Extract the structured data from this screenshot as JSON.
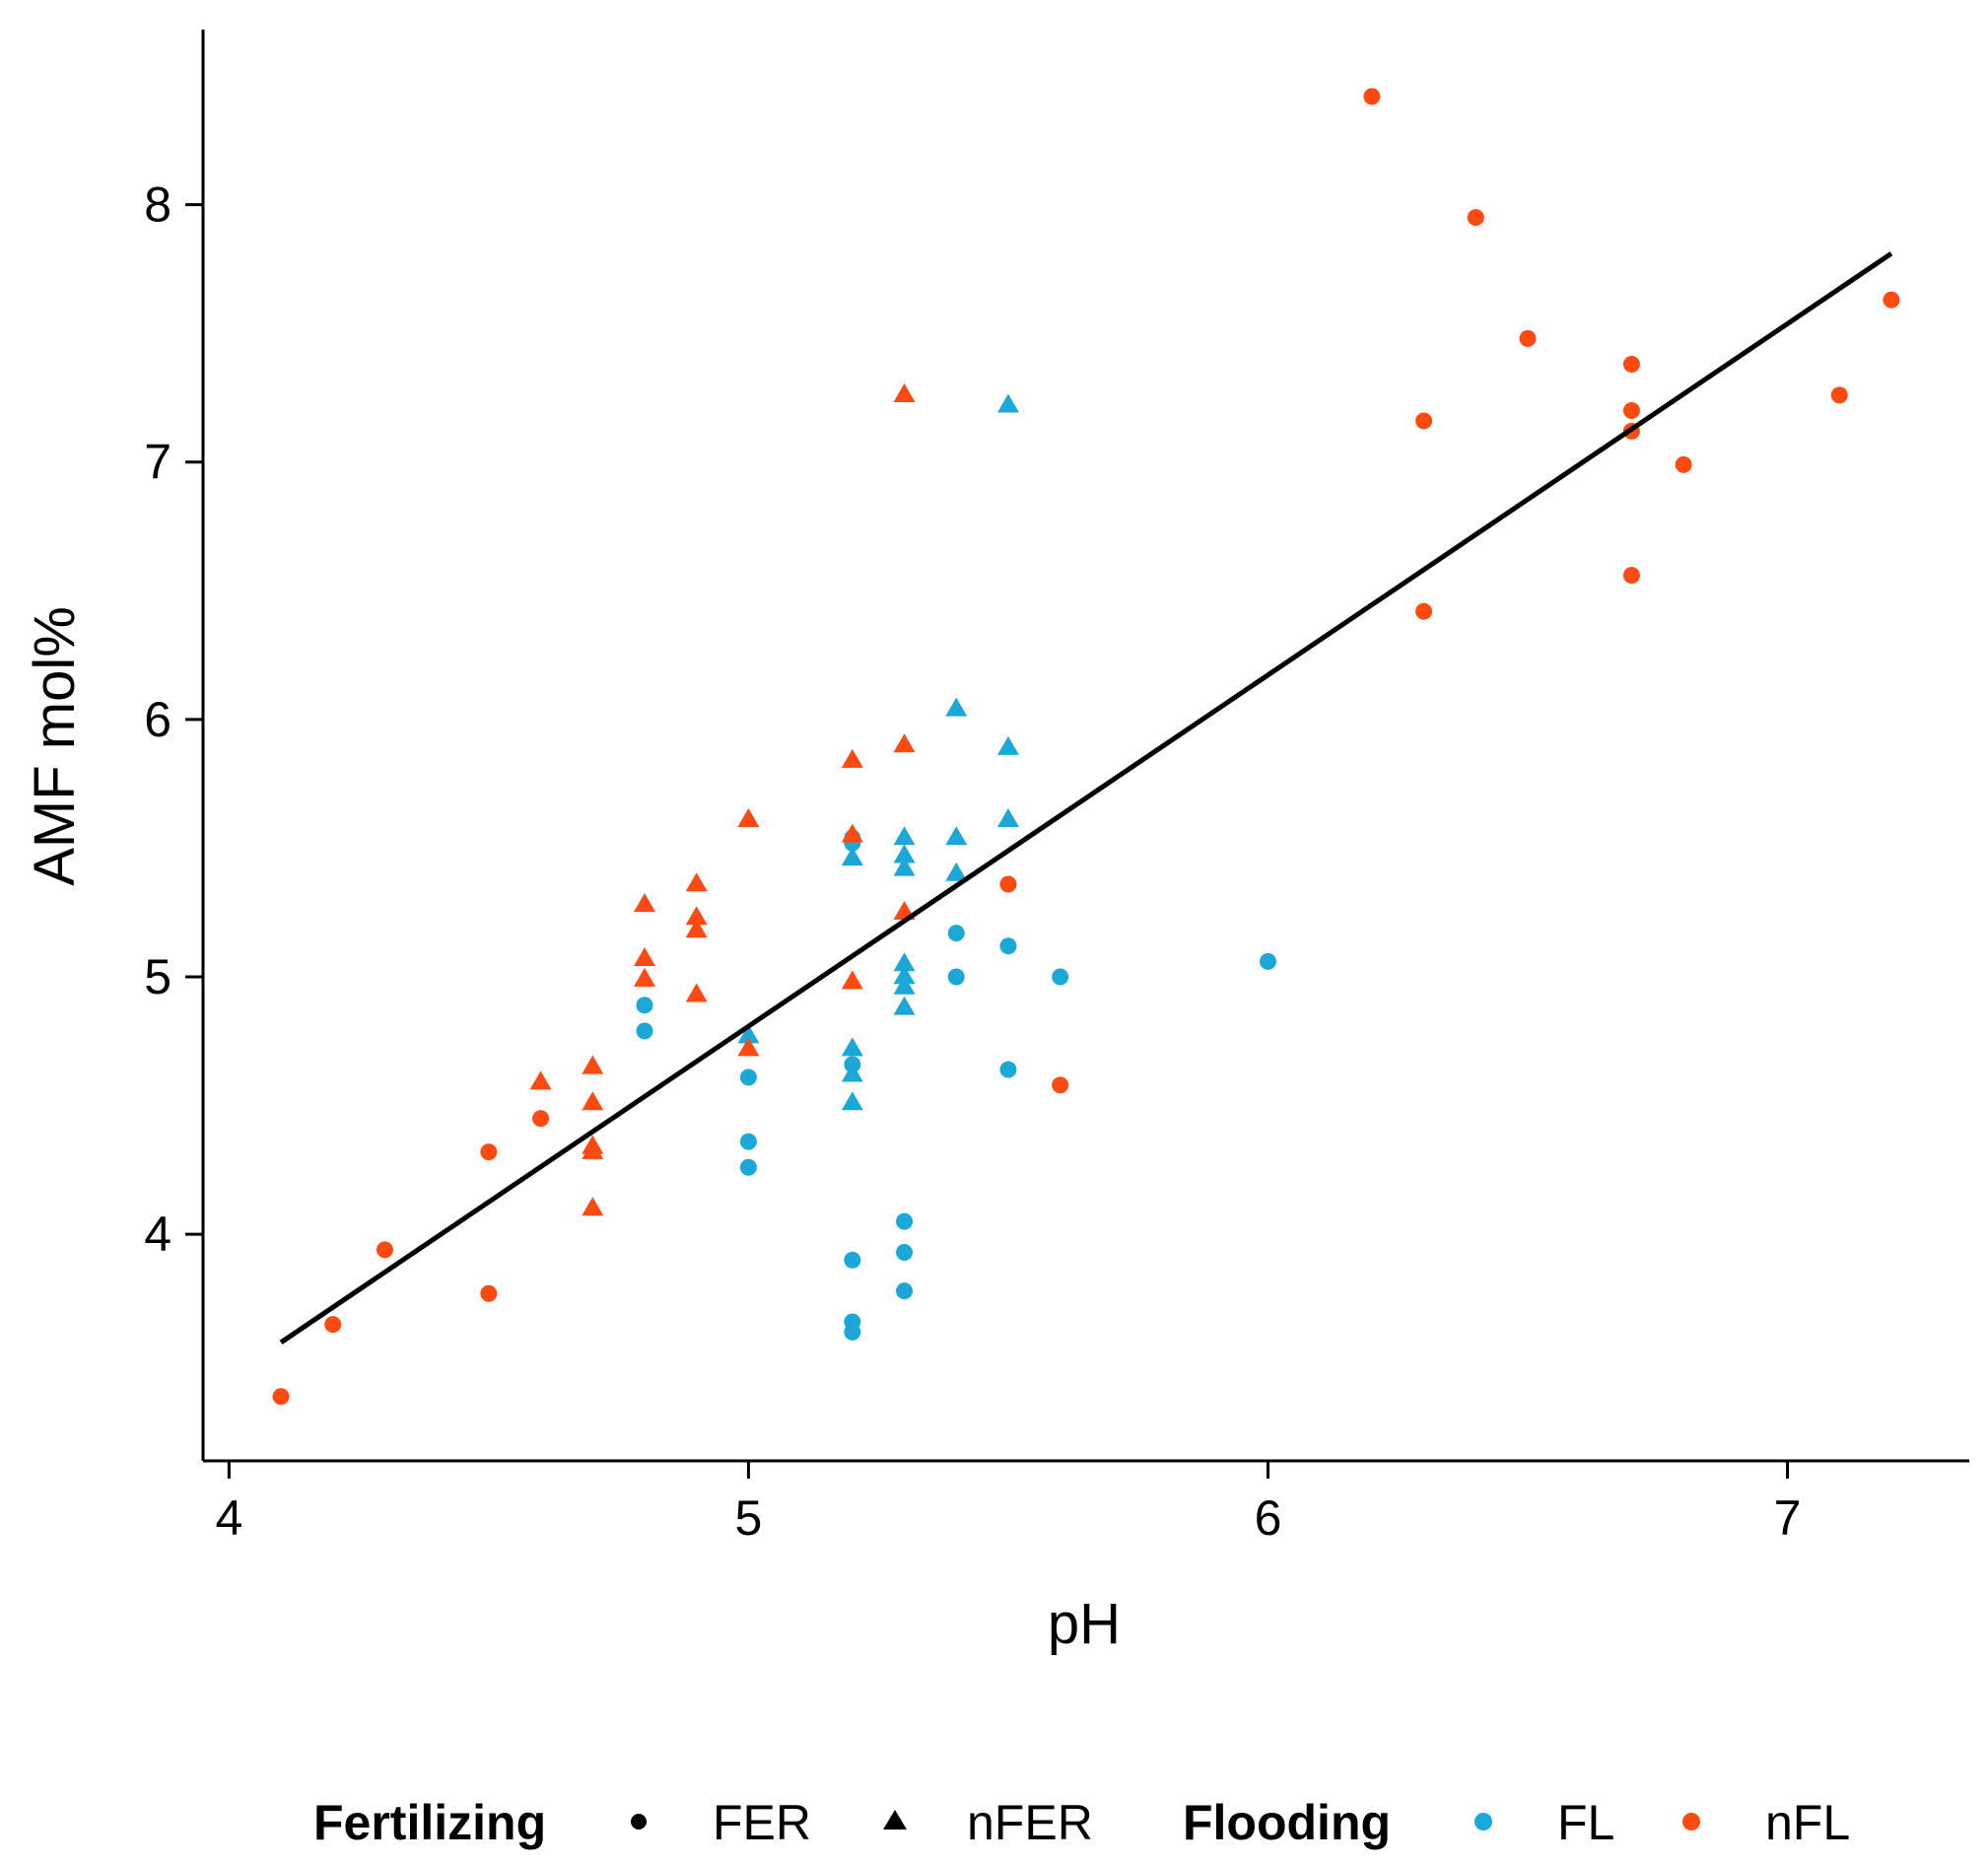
{
  "chart_data": {
    "type": "scatter",
    "title": "",
    "xlabel": "pH",
    "ylabel": "AMF mol%",
    "xlim": [
      3.95,
      7.35
    ],
    "ylim": [
      3.12,
      8.68
    ],
    "xticks": [
      4,
      5,
      6,
      7
    ],
    "yticks": [
      4,
      5,
      6,
      7,
      8
    ],
    "xtick_labels": [
      "4",
      "5",
      "6",
      "7"
    ],
    "ytick_labels": [
      "4",
      "5",
      "6",
      "7",
      "8"
    ],
    "grid": false,
    "legend_position": "bottom",
    "legend": {
      "fertilizing_title": "Fertilizing",
      "fertilizing_entries": [
        {
          "label": "FER",
          "shape": "circle"
        },
        {
          "label": "nFER",
          "shape": "triangle"
        }
      ],
      "flooding_title": "Flooding",
      "flooding_entries": [
        {
          "label": "FL",
          "color": "#1BA8D9"
        },
        {
          "label": "nFL",
          "color": "#FF4B12"
        }
      ]
    },
    "colors": {
      "FL": "#1BA8D9",
      "nFL": "#FF4B12",
      "line": "#000000",
      "axis": "#000000"
    },
    "fit_line": {
      "x": [
        4.1,
        7.2
      ],
      "y": [
        3.58,
        7.81
      ]
    },
    "series": [
      {
        "name": "FER-FL",
        "fertilizing": "FER",
        "flooding": "FL",
        "points": [
          [
            4.8,
            4.89
          ],
          [
            4.8,
            4.79
          ],
          [
            5.0,
            4.61
          ],
          [
            5.0,
            4.36
          ],
          [
            5.0,
            4.26
          ],
          [
            5.2,
            5.54
          ],
          [
            5.2,
            5.52
          ],
          [
            5.2,
            4.66
          ],
          [
            5.2,
            3.9
          ],
          [
            5.2,
            3.66
          ],
          [
            5.2,
            3.62
          ],
          [
            5.3,
            4.05
          ],
          [
            5.3,
            3.93
          ],
          [
            5.3,
            3.78
          ],
          [
            5.4,
            5.17
          ],
          [
            5.4,
            5.0
          ],
          [
            5.5,
            5.12
          ],
          [
            5.5,
            4.64
          ],
          [
            5.6,
            5.0
          ],
          [
            6.0,
            5.06
          ]
        ]
      },
      {
        "name": "nFER-FL",
        "fertilizing": "nFER",
        "flooding": "FL",
        "points": [
          [
            5.0,
            4.77
          ],
          [
            5.2,
            5.46
          ],
          [
            5.2,
            4.72
          ],
          [
            5.2,
            4.62
          ],
          [
            5.2,
            4.51
          ],
          [
            5.3,
            5.54
          ],
          [
            5.3,
            5.47
          ],
          [
            5.3,
            5.42
          ],
          [
            5.3,
            5.05
          ],
          [
            5.3,
            5.0
          ],
          [
            5.3,
            4.96
          ],
          [
            5.3,
            4.88
          ],
          [
            5.4,
            6.04
          ],
          [
            5.4,
            5.54
          ],
          [
            5.4,
            5.4
          ],
          [
            5.5,
            7.22
          ],
          [
            5.5,
            5.89
          ],
          [
            5.5,
            5.61
          ]
        ]
      },
      {
        "name": "FER-nFL",
        "fertilizing": "FER",
        "flooding": "nFL",
        "points": [
          [
            4.1,
            3.37
          ],
          [
            4.2,
            3.65
          ],
          [
            4.3,
            3.94
          ],
          [
            4.5,
            4.32
          ],
          [
            4.5,
            3.77
          ],
          [
            4.6,
            4.45
          ],
          [
            5.5,
            5.36
          ],
          [
            5.6,
            4.58
          ],
          [
            6.2,
            8.42
          ],
          [
            6.3,
            7.16
          ],
          [
            6.3,
            6.42
          ],
          [
            6.4,
            7.95
          ],
          [
            6.5,
            7.48
          ],
          [
            6.7,
            7.38
          ],
          [
            6.7,
            7.2
          ],
          [
            6.7,
            7.12
          ],
          [
            6.7,
            6.56
          ],
          [
            6.8,
            6.99
          ],
          [
            7.1,
            7.26
          ],
          [
            7.2,
            7.63
          ]
        ]
      },
      {
        "name": "nFER-nFL",
        "fertilizing": "nFER",
        "flooding": "nFL",
        "points": [
          [
            4.6,
            4.59
          ],
          [
            4.7,
            4.65
          ],
          [
            4.7,
            4.51
          ],
          [
            4.7,
            4.34
          ],
          [
            4.7,
            4.32
          ],
          [
            4.7,
            4.1
          ],
          [
            4.8,
            5.28
          ],
          [
            4.8,
            5.07
          ],
          [
            4.8,
            4.99
          ],
          [
            4.9,
            5.36
          ],
          [
            4.9,
            5.23
          ],
          [
            4.9,
            5.18
          ],
          [
            4.9,
            4.93
          ],
          [
            5.0,
            5.61
          ],
          [
            5.0,
            4.72
          ],
          [
            5.2,
            5.84
          ],
          [
            5.2,
            5.55
          ],
          [
            5.2,
            4.98
          ],
          [
            5.3,
            7.26
          ],
          [
            5.3,
            5.9
          ],
          [
            5.3,
            5.25
          ]
        ]
      }
    ]
  }
}
